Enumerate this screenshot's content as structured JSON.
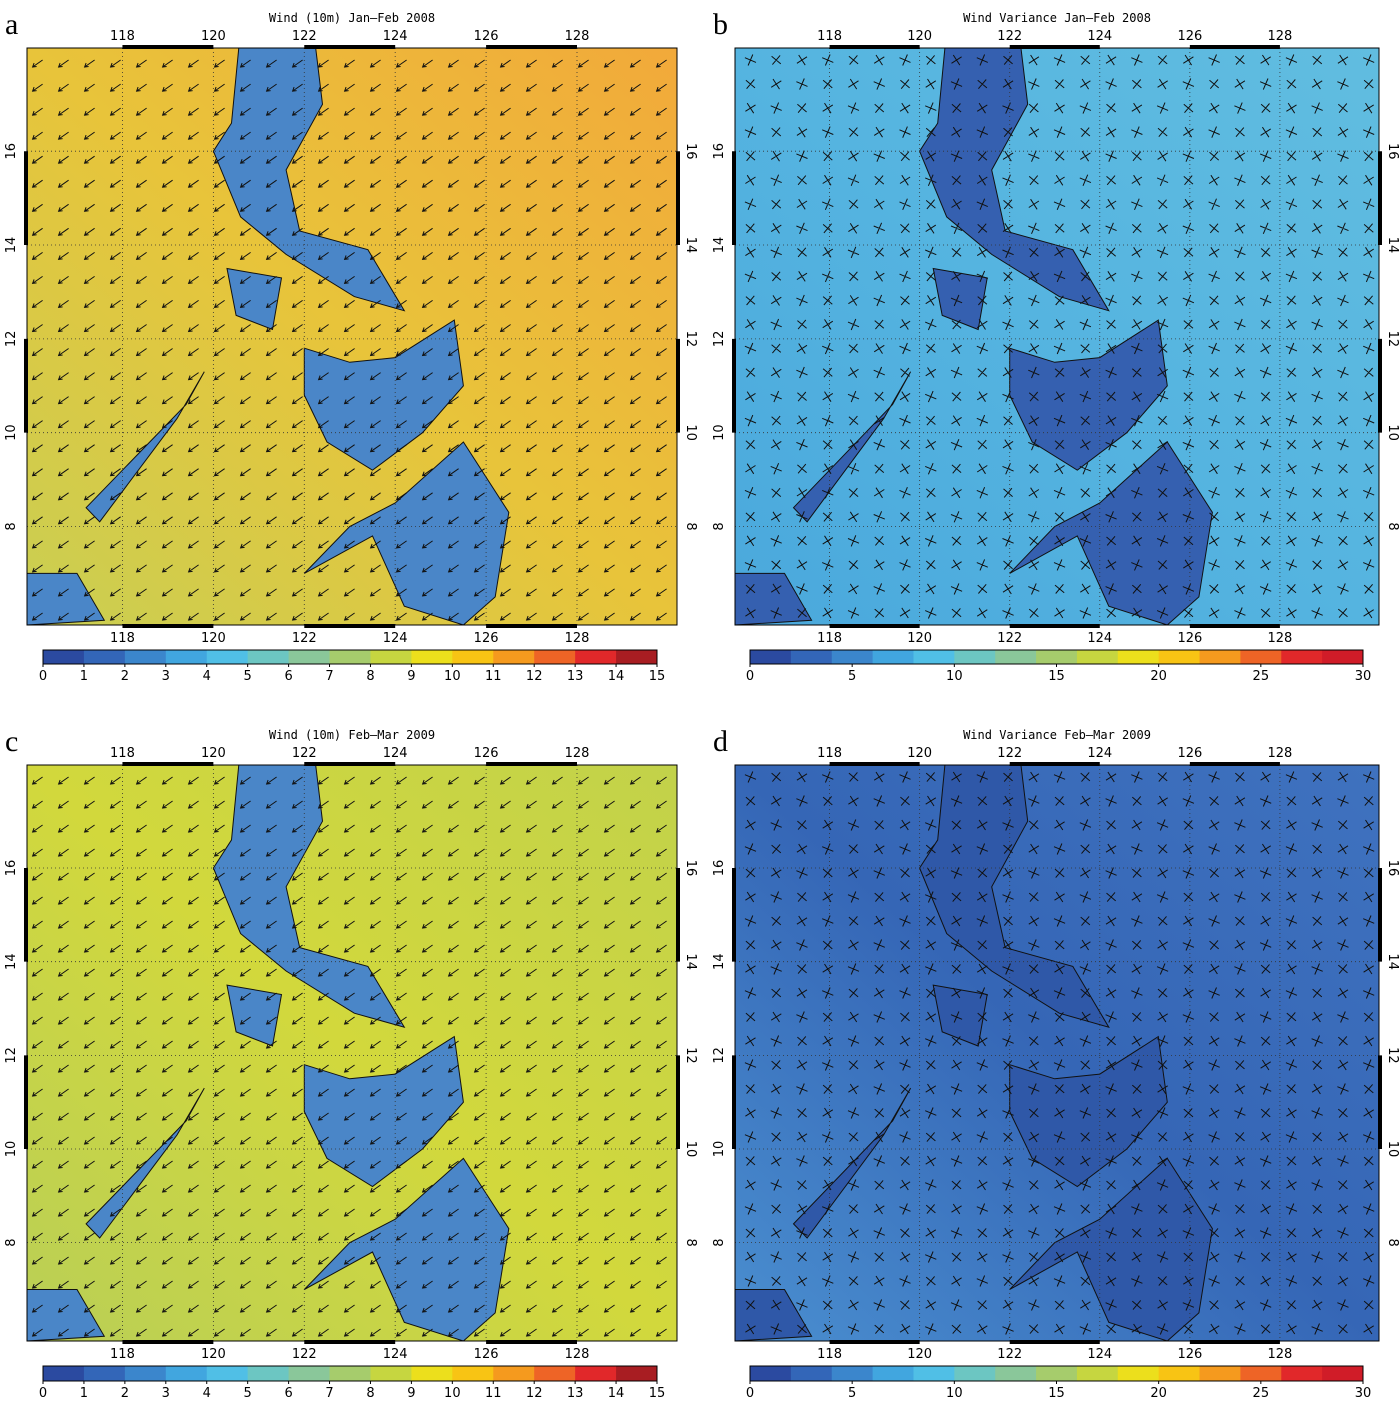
{
  "panels": [
    {
      "letter": "a",
      "title": "Wind (10m) Jan–Feb 2008",
      "kind": "vector",
      "sea": [
        "#f2a93a",
        "#e8c43a",
        "#c9cf52"
      ],
      "land": "#4a86c8",
      "xlim": [
        115.9,
        130.2
      ],
      "ylim": [
        5.9,
        18.2
      ],
      "xticks": [
        118,
        120,
        122,
        124,
        126,
        128
      ],
      "yticks": [
        8,
        10,
        12,
        14,
        16
      ],
      "colorbar": {
        "lim": [
          0,
          15
        ],
        "ticks": [
          0,
          1,
          2,
          3,
          4,
          5,
          6,
          7,
          8,
          9,
          10,
          11,
          12,
          13,
          14,
          15
        ],
        "colors": [
          "#2b4aa0",
          "#3366b8",
          "#3b86cc",
          "#41a6df",
          "#50bfe6",
          "#6cc6c2",
          "#8ac79a",
          "#a6cc6c",
          "#c6d640",
          "#ecdf1c",
          "#f8c414",
          "#f59a1e",
          "#ee6426",
          "#e1282a",
          "#a81d22"
        ]
      }
    },
    {
      "letter": "b",
      "title": "Wind Variance Jan–Feb 2008",
      "kind": "cross",
      "sea": [
        "#61bde0",
        "#55b4e0",
        "#4aa8dc"
      ],
      "land": "#3560b0",
      "xlim": [
        115.9,
        130.2
      ],
      "ylim": [
        5.9,
        18.2
      ],
      "xticks": [
        118,
        120,
        122,
        124,
        126,
        128
      ],
      "yticks": [
        8,
        10,
        12,
        14,
        16
      ],
      "colorbar": {
        "lim": [
          0,
          30
        ],
        "ticks": [
          0,
          5,
          10,
          15,
          20,
          25,
          30
        ],
        "colors": [
          "#2b4aa0",
          "#3366b8",
          "#3b86cc",
          "#41a6df",
          "#50bfe6",
          "#6cc6c2",
          "#8ac79a",
          "#a6cc6c",
          "#c6d640",
          "#ecdf1c",
          "#f8c414",
          "#f59a1e",
          "#ee6426",
          "#e1282a",
          "#d01c28"
        ]
      }
    },
    {
      "letter": "c",
      "title": "Wind (10m) Feb–Mar 2009",
      "kind": "vector",
      "sea": [
        "#c2d24a",
        "#d2d83c",
        "#b9cf56"
      ],
      "land": "#4a86c8",
      "xlim": [
        115.9,
        130.2
      ],
      "ylim": [
        5.9,
        18.2
      ],
      "xticks": [
        118,
        120,
        122,
        124,
        126,
        128
      ],
      "yticks": [
        8,
        10,
        12,
        14,
        16
      ],
      "colorbar": {
        "lim": [
          0,
          15
        ],
        "ticks": [
          0,
          1,
          2,
          3,
          4,
          5,
          6,
          7,
          8,
          9,
          10,
          11,
          12,
          13,
          14,
          15
        ],
        "colors": [
          "#2b4aa0",
          "#3366b8",
          "#3b86cc",
          "#41a6df",
          "#50bfe6",
          "#6cc6c2",
          "#8ac79a",
          "#a6cc6c",
          "#c6d640",
          "#ecdf1c",
          "#f8c414",
          "#f59a1e",
          "#ee6426",
          "#e1282a",
          "#a81d22"
        ]
      }
    },
    {
      "letter": "d",
      "title": "Wind Variance Feb–Mar 2009",
      "kind": "cross",
      "sea": [
        "#3f72bf",
        "#3566b6",
        "#4a8fd0"
      ],
      "land": "#2f58a8",
      "xlim": [
        115.9,
        130.2
      ],
      "ylim": [
        5.9,
        18.2
      ],
      "xticks": [
        118,
        120,
        122,
        124,
        126,
        128
      ],
      "yticks": [
        8,
        10,
        12,
        14,
        16
      ],
      "colorbar": {
        "lim": [
          0,
          30
        ],
        "ticks": [
          0,
          5,
          10,
          15,
          20,
          25,
          30
        ],
        "colors": [
          "#2b4aa0",
          "#3366b8",
          "#3b86cc",
          "#41a6df",
          "#50bfe6",
          "#6cc6c2",
          "#8ac79a",
          "#a6cc6c",
          "#c6d640",
          "#ecdf1c",
          "#f8c414",
          "#f59a1e",
          "#ee6426",
          "#e1282a",
          "#d01c28"
        ]
      }
    }
  ]
}
